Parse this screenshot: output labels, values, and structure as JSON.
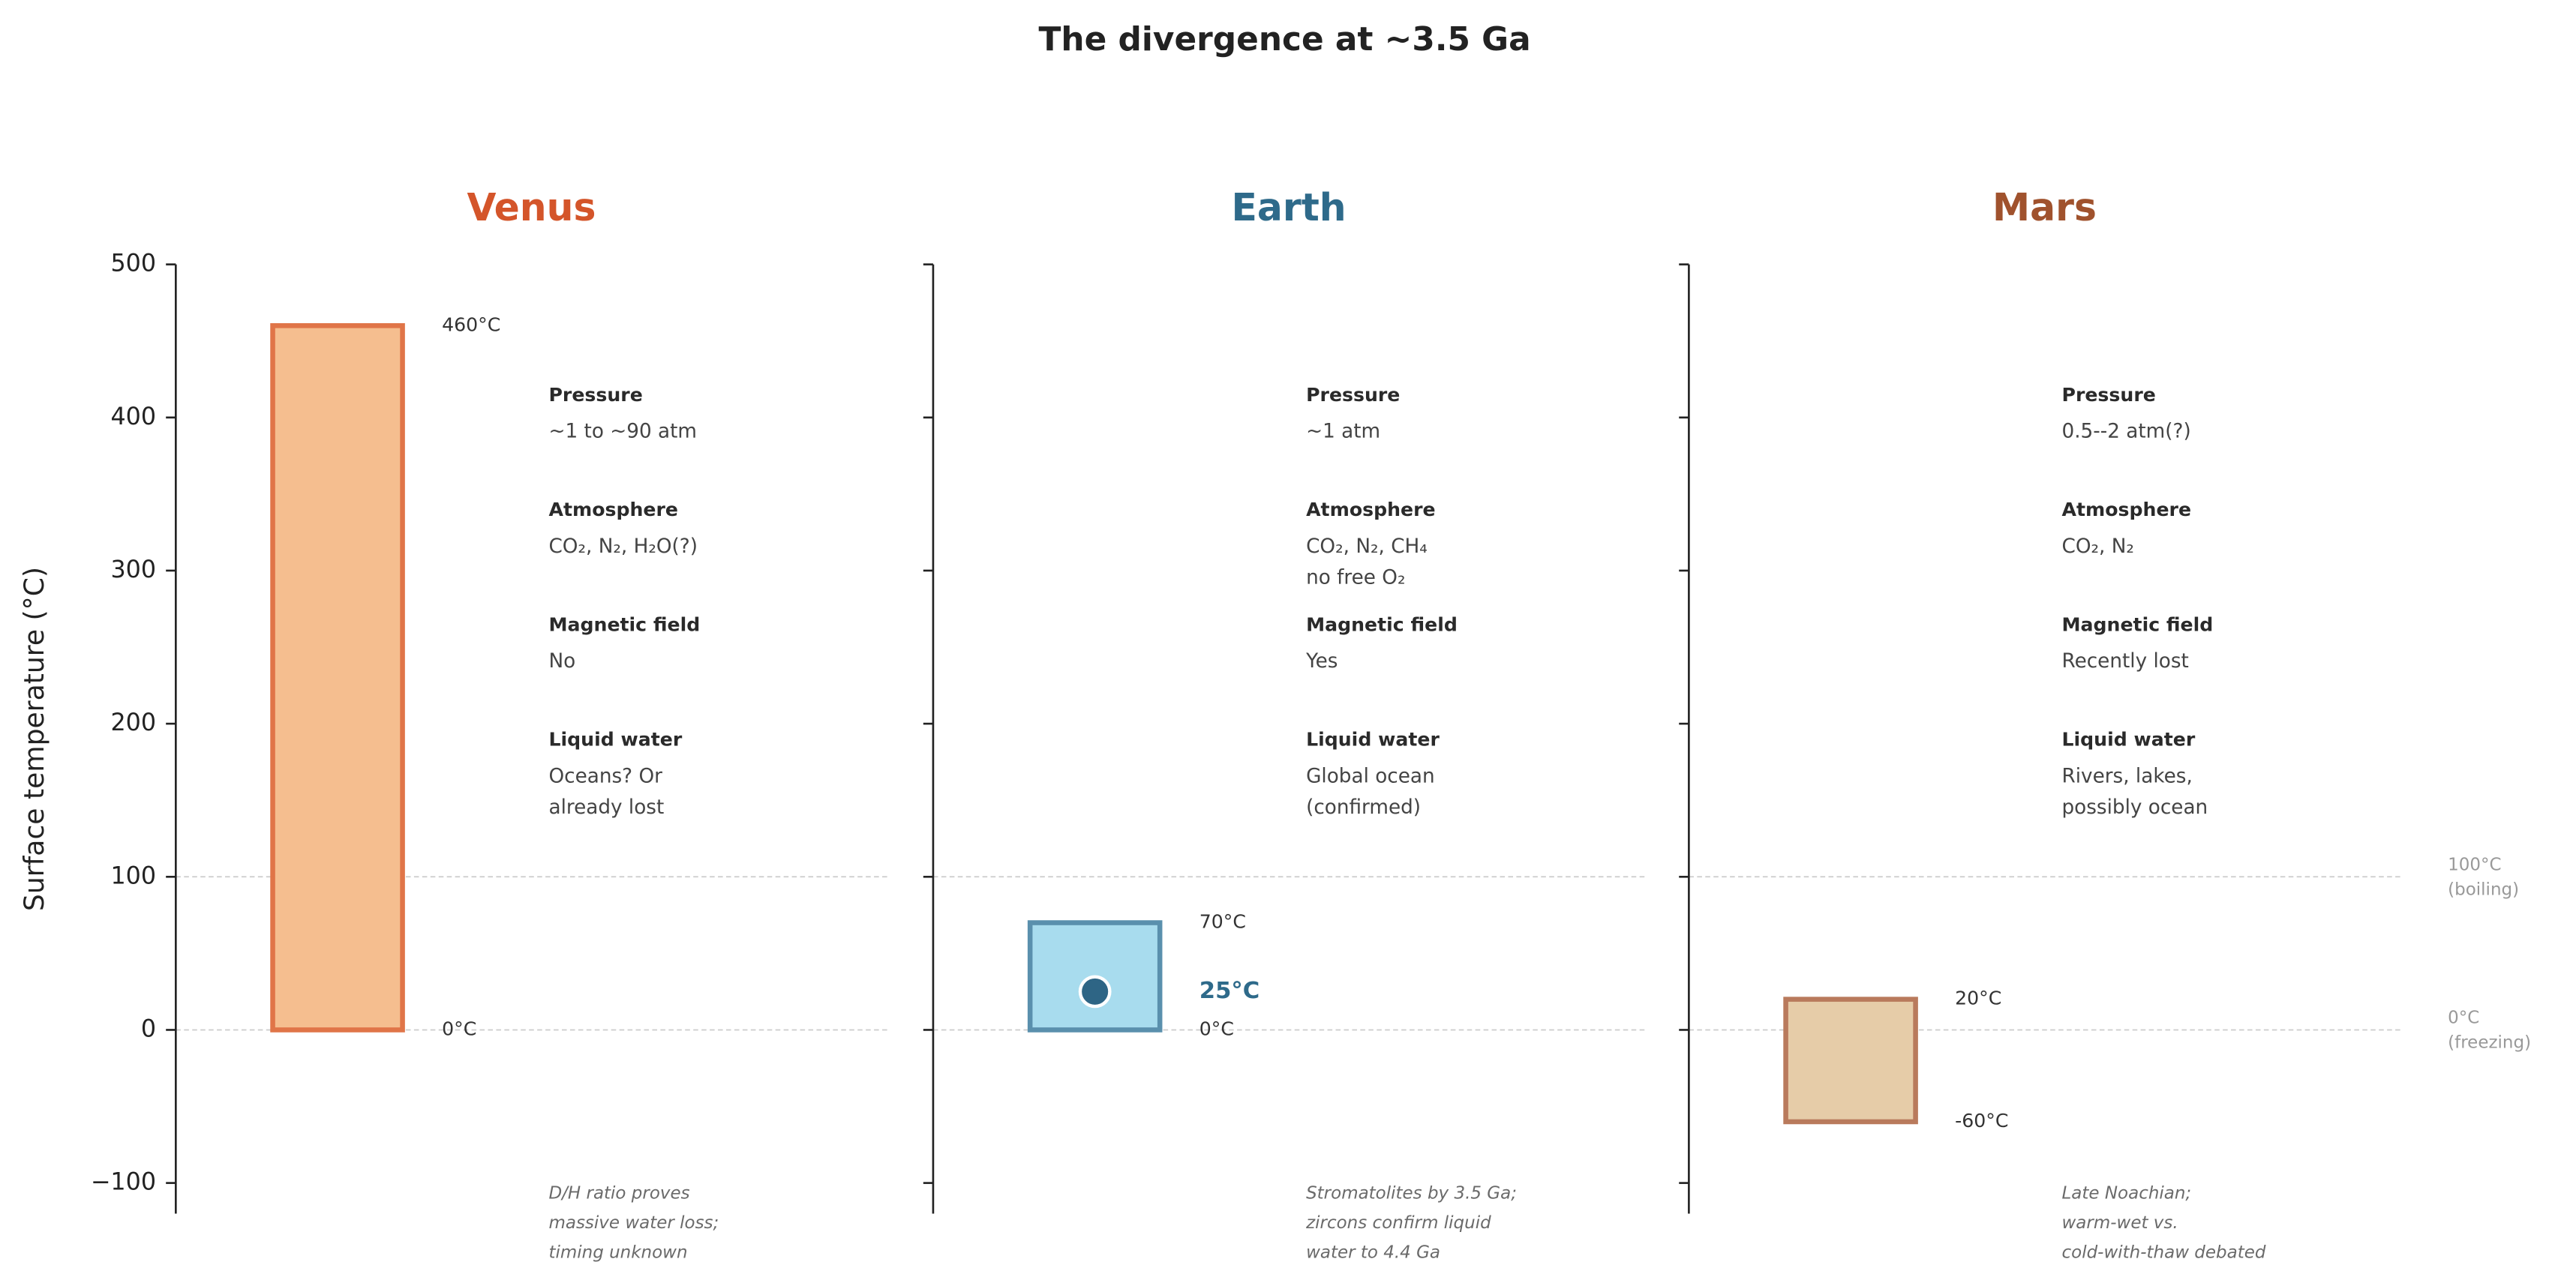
{
  "title": "The divergence at ~3.5 Ga",
  "chart_data": [
    {
      "type": "range-bar",
      "title": "Venus",
      "title_color": "#d4552a",
      "ylabel": "Surface temperature (°C)",
      "ylim": [
        -120,
        500
      ],
      "yticks": [
        {
          "value": -100,
          "label": "−100"
        },
        0,
        100,
        200,
        300,
        400,
        500
      ],
      "range": [
        0,
        460
      ],
      "value_labels": [
        "0°C",
        "460°C"
      ],
      "color": "#f5be8f",
      "edge_color": "#e07548",
      "facts": [
        {
          "label": "Pressure",
          "value": [
            "~1 to ~90 atm"
          ]
        },
        {
          "label": "Atmosphere",
          "value": [
            "CO₂, N₂, H₂O(?)"
          ]
        },
        {
          "label": "Magnetic field",
          "value": [
            "No"
          ]
        },
        {
          "label": "Liquid water",
          "value": [
            "Oceans? Or",
            "already lost"
          ]
        }
      ],
      "note": [
        "D/H ratio proves",
        "massive water loss;",
        "timing unknown"
      ]
    },
    {
      "type": "range-bar",
      "title": "Earth",
      "title_color": "#2e6a8a",
      "range": [
        0,
        70
      ],
      "value_labels": [
        "0°C",
        "70°C"
      ],
      "color": "#a8dcee",
      "edge_color": "#5a90ad",
      "point": 25,
      "point_label": "25°C",
      "point_color": "#2e6585",
      "facts": [
        {
          "label": "Pressure",
          "value": [
            "~1 atm"
          ]
        },
        {
          "label": "Atmosphere",
          "value": [
            "CO₂, N₂, CH₄",
            "no free O₂"
          ]
        },
        {
          "label": "Magnetic field",
          "value": [
            "Yes"
          ]
        },
        {
          "label": "Liquid water",
          "value": [
            "Global ocean",
            "(confirmed)"
          ]
        }
      ],
      "note": [
        "Stromatolites by 3.5 Ga;",
        "zircons confirm liquid",
        "water to 4.4 Ga"
      ]
    },
    {
      "type": "range-bar",
      "title": "Mars",
      "title_color": "#a0522d",
      "range": [
        -60,
        20
      ],
      "value_labels": [
        "-60°C",
        "20°C"
      ],
      "color": "#e6cca8",
      "edge_color": "#b97a5c",
      "facts": [
        {
          "label": "Pressure",
          "value": [
            "0.5--2 atm(?)"
          ]
        },
        {
          "label": "Atmosphere",
          "value": [
            "CO₂, N₂"
          ]
        },
        {
          "label": "Magnetic field",
          "value": [
            "Recently lost"
          ]
        },
        {
          "label": "Liquid water",
          "value": [
            "Rivers, lakes,",
            "possibly ocean"
          ]
        }
      ],
      "note": [
        "Late Noachian;",
        "warm-wet vs.",
        "cold-with-thaw debated"
      ],
      "reference_lines": [
        {
          "value": 100,
          "label": [
            "100°C",
            "(boiling)"
          ]
        },
        {
          "value": 0,
          "label": [
            "0°C",
            "(freezing)"
          ]
        }
      ]
    }
  ]
}
